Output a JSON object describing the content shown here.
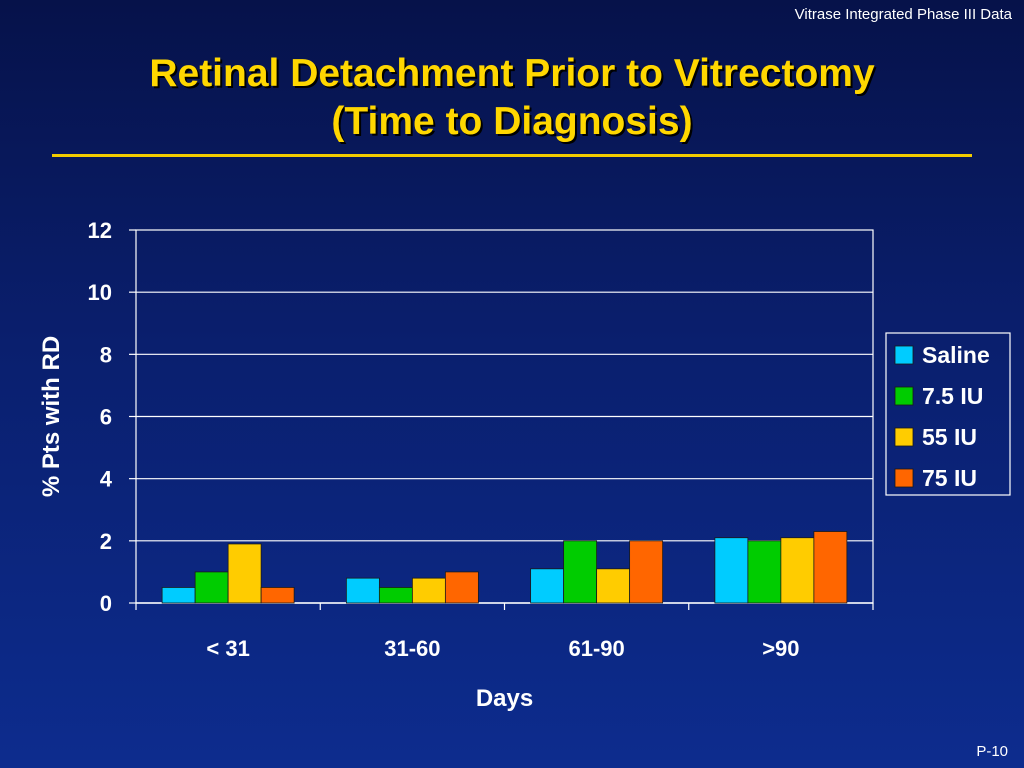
{
  "header": {
    "note": "Vitrase Integrated Phase III Data",
    "page_number": "P-10"
  },
  "title": {
    "line1": "Retinal Detachment Prior to Vitrectomy",
    "line2": "(Time to Diagnosis)"
  },
  "colors": {
    "title": "#ffd700",
    "rule": "#f2cc00",
    "text": "#ffffff",
    "grid": "#ffffff",
    "axis": "#ffffff"
  },
  "chart_data": {
    "type": "bar",
    "xlabel": "Days",
    "ylabel": "% Pts with RD",
    "categories": [
      "< 31",
      "31-60",
      "61-90",
      ">90"
    ],
    "ylim": [
      0,
      12
    ],
    "yticks": [
      0,
      2,
      4,
      6,
      8,
      10,
      12
    ],
    "grid": true,
    "legend_position": "right",
    "series": [
      {
        "name": "Saline",
        "color": "#00ccff",
        "values": [
          0.5,
          0.8,
          1.1,
          2.1
        ]
      },
      {
        "name": "7.5 IU",
        "color": "#00cc00",
        "values": [
          1.0,
          0.5,
          2.0,
          2.0
        ]
      },
      {
        "name": "55 IU",
        "color": "#ffcc00",
        "values": [
          1.9,
          0.8,
          1.1,
          2.1
        ]
      },
      {
        "name": "75 IU",
        "color": "#ff6600",
        "values": [
          0.5,
          1.0,
          2.0,
          2.3
        ]
      }
    ]
  }
}
